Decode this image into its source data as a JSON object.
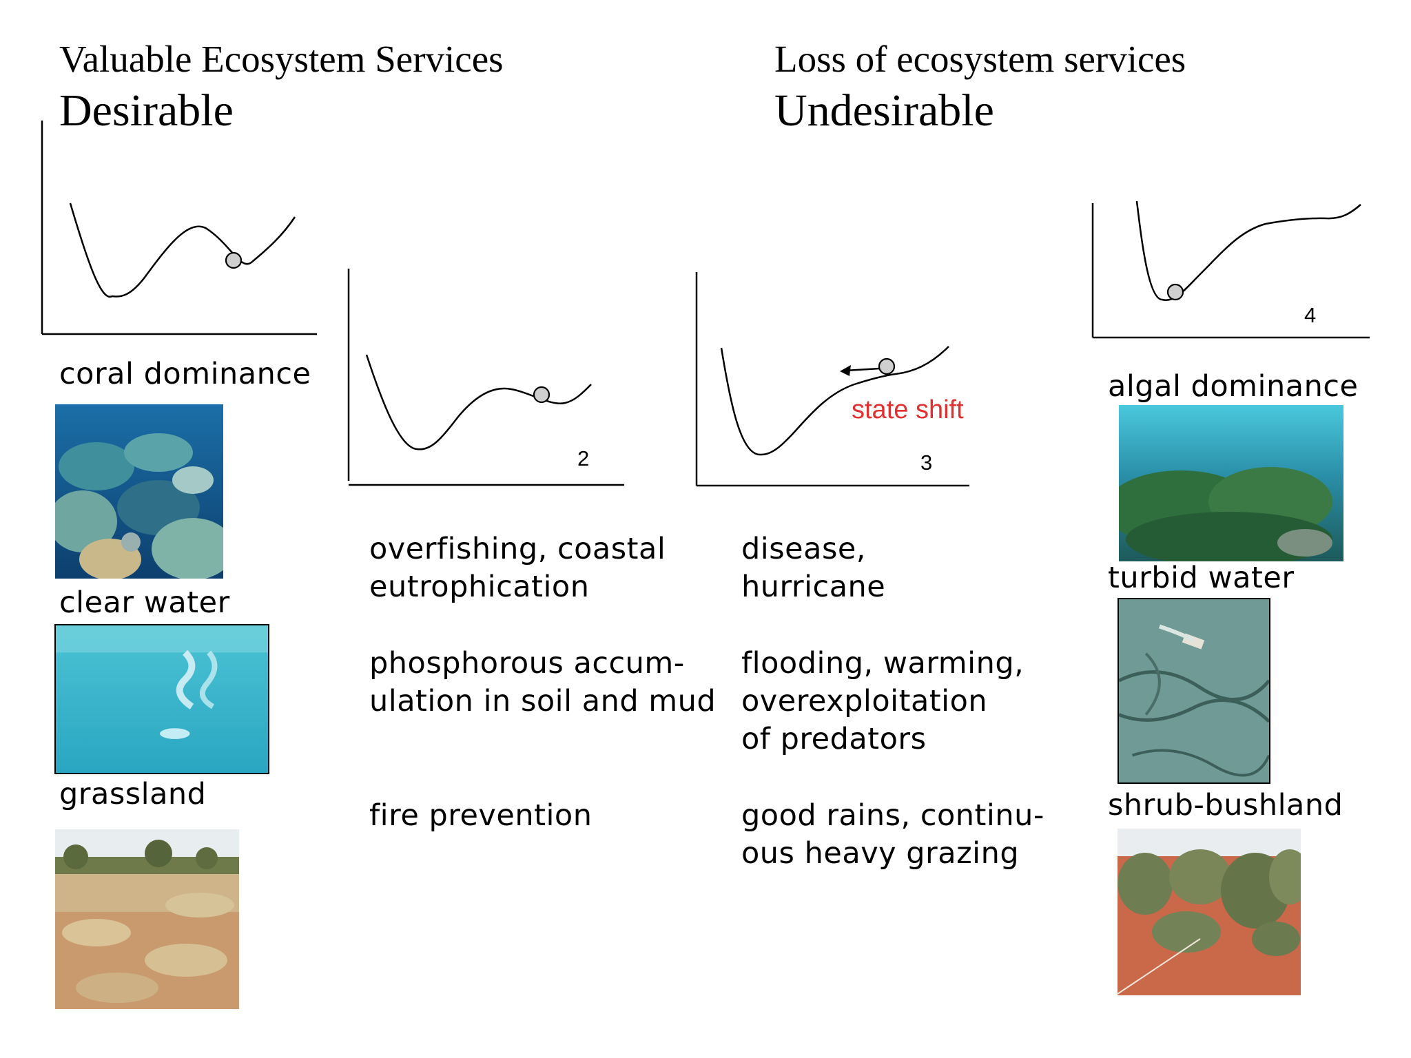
{
  "left_header": {
    "subtitle": "Valuable Ecosystem Services",
    "title": "Desirable"
  },
  "right_header": {
    "subtitle": "Loss of ecosystem services",
    "title": "Undesirable"
  },
  "desirable_states": [
    "coral dominance",
    "clear water",
    "grassland"
  ],
  "undesirable_states": [
    "algal dominance",
    "turbid water",
    "shrub-bushland"
  ],
  "panels": {
    "panel_2_number": "2",
    "panel_3_number": "3",
    "panel_4_number": "4",
    "state_shift_label": "state shift",
    "state_shift_color": "#e03030"
  },
  "drivers_column_1": [
    [
      "overfishing, coastal",
      "eutrophication"
    ],
    [
      "phosphorous accum-",
      "ulation in soil and mud"
    ],
    [
      "fire prevention"
    ]
  ],
  "drivers_column_2": [
    [
      "disease,",
      "hurricane"
    ],
    [
      "flooding, warming,",
      "overexploitation",
      "of predators"
    ],
    [
      "good rains, continu-",
      "ous heavy grazing"
    ]
  ]
}
